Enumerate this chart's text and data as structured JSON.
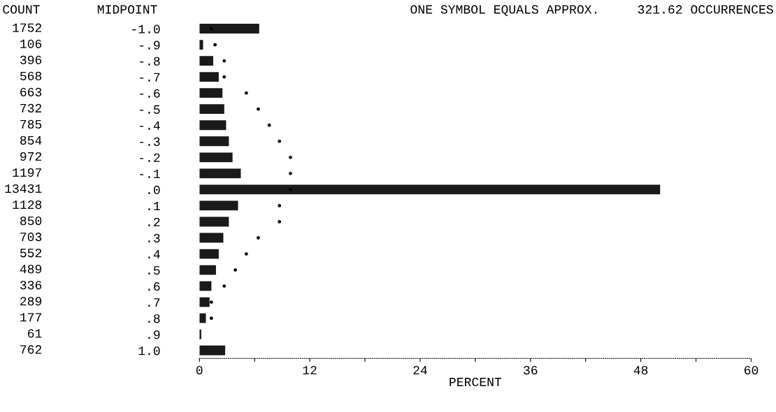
{
  "chart_data": {
    "type": "bar",
    "orientation": "horizontal",
    "title": "ONE SYMBOL EQUALS APPROX.     321.62 OCCURRENCES",
    "ylabel": "MIDPOINT",
    "xlabel": "PERCENT",
    "annotations": [
      "COUNT",
      "1752",
      "106",
      "396",
      "568",
      "663",
      "732",
      "785",
      "854",
      "972",
      "1197",
      "13431",
      "1128",
      "850",
      "703",
      "552",
      "489",
      "336",
      "289",
      "177",
      "61",
      "762"
    ],
    "categories": [
      "-1.0",
      "-.9",
      "-.8",
      "-.7",
      "-.6",
      "-.5",
      "-.4",
      "-.3",
      "-.2",
      "-.1",
      ".0",
      ".1",
      ".2",
      ".3",
      ".4",
      ".5",
      ".6",
      ".7",
      ".8",
      ".9",
      "1.0"
    ],
    "series": [
      {
        "color": "#1a1a1a",
        "values": [
          6.5,
          0.4,
          1.5,
          2.1,
          2.5,
          2.7,
          2.9,
          3.2,
          3.6,
          4.5,
          50.1,
          4.2,
          3.2,
          2.6,
          2.1,
          1.8,
          1.3,
          1.1,
          0.7,
          0.2,
          2.8
        ]
      },
      {
        "type": "scatter",
        "color": "#000000",
        "marker": "circle",
        "values": [
          1.3,
          1.7,
          2.7,
          2.7,
          5.1,
          6.4,
          7.6,
          8.7,
          9.9,
          9.9,
          9.9,
          8.7,
          8.7,
          6.4,
          5.1,
          3.9,
          2.7,
          1.3,
          1.3,
          null,
          null
        ]
      }
    ],
    "xlim": [
      0,
      60
    ],
    "xticks": [
      0,
      {
        "value": 6,
        "label": null
      },
      12,
      {
        "value": 18,
        "label": null
      },
      24,
      {
        "value": 30,
        "label": null
      },
      36,
      {
        "value": 42,
        "label": null
      },
      48,
      {
        "value": 54,
        "label": null
      },
      60
    ],
    "grid": false,
    "legend": false
  }
}
